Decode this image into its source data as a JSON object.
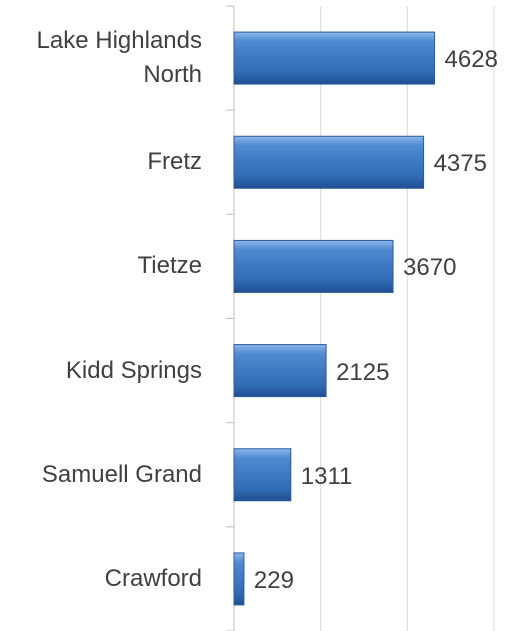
{
  "chart_data": {
    "type": "bar",
    "orientation": "horizontal",
    "categories": [
      "Lake Highlands North",
      "Fretz",
      "Tietze",
      "Kidd Springs",
      "Samuell Grand",
      "Crawford"
    ],
    "values": [
      4628,
      4375,
      3670,
      2125,
      1311,
      229
    ],
    "color": "#3a78c4",
    "xlim": [
      0,
      6000
    ],
    "xticks": [
      0,
      2000,
      4000,
      6000
    ],
    "grid": true
  }
}
